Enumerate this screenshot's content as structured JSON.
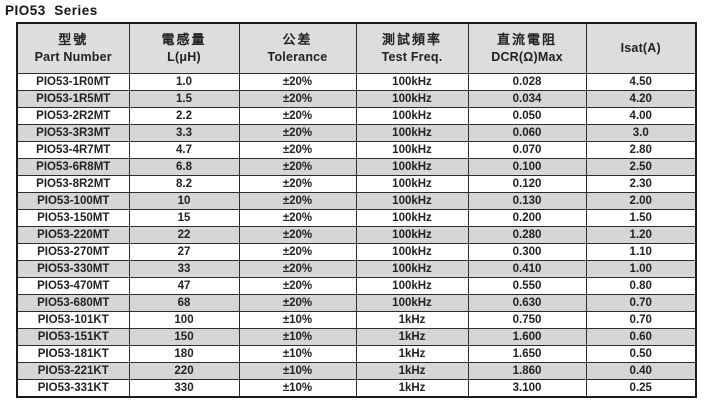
{
  "title": "PIO53  Series",
  "table": {
    "columns": [
      {
        "cn": "型號",
        "en": "Part Number"
      },
      {
        "cn": "電感量",
        "en": "L(μH)"
      },
      {
        "cn": "公差",
        "en": "Tolerance"
      },
      {
        "cn": "測試頻率",
        "en": "Test Freq."
      },
      {
        "cn": "直流電阻",
        "en": "DCR(Ω)Max"
      },
      {
        "cn": "",
        "en": "Isat(A)"
      }
    ],
    "rows": [
      {
        "part_number": "PIO53-1R0MT",
        "inductance": "1.0",
        "tolerance": "±20%",
        "test_freq": "100kHz",
        "dcr_max": "0.028",
        "isat": "4.50"
      },
      {
        "part_number": "PIO53-1R5MT",
        "inductance": "1.5",
        "tolerance": "±20%",
        "test_freq": "100kHz",
        "dcr_max": "0.034",
        "isat": "4.20"
      },
      {
        "part_number": "PIO53-2R2MT",
        "inductance": "2.2",
        "tolerance": "±20%",
        "test_freq": "100kHz",
        "dcr_max": "0.050",
        "isat": "4.00"
      },
      {
        "part_number": "PIO53-3R3MT",
        "inductance": "3.3",
        "tolerance": "±20%",
        "test_freq": "100kHz",
        "dcr_max": "0.060",
        "isat": "3.0"
      },
      {
        "part_number": "PIO53-4R7MT",
        "inductance": "4.7",
        "tolerance": "±20%",
        "test_freq": "100kHz",
        "dcr_max": "0.070",
        "isat": "2.80"
      },
      {
        "part_number": "PIO53-6R8MT",
        "inductance": "6.8",
        "tolerance": "±20%",
        "test_freq": "100kHz",
        "dcr_max": "0.100",
        "isat": "2.50"
      },
      {
        "part_number": "PIO53-8R2MT",
        "inductance": "8.2",
        "tolerance": "±20%",
        "test_freq": "100kHz",
        "dcr_max": "0.120",
        "isat": "2.30"
      },
      {
        "part_number": "PIO53-100MT",
        "inductance": "10",
        "tolerance": "±20%",
        "test_freq": "100kHz",
        "dcr_max": "0.130",
        "isat": "2.00"
      },
      {
        "part_number": "PIO53-150MT",
        "inductance": "15",
        "tolerance": "±20%",
        "test_freq": "100kHz",
        "dcr_max": "0.200",
        "isat": "1.50"
      },
      {
        "part_number": "PIO53-220MT",
        "inductance": "22",
        "tolerance": "±20%",
        "test_freq": "100kHz",
        "dcr_max": "0.280",
        "isat": "1.20"
      },
      {
        "part_number": "PIO53-270MT",
        "inductance": "27",
        "tolerance": "±20%",
        "test_freq": "100kHz",
        "dcr_max": "0.300",
        "isat": "1.10"
      },
      {
        "part_number": "PIO53-330MT",
        "inductance": "33",
        "tolerance": "±20%",
        "test_freq": "100kHz",
        "dcr_max": "0.410",
        "isat": "1.00"
      },
      {
        "part_number": "PIO53-470MT",
        "inductance": "47",
        "tolerance": "±20%",
        "test_freq": "100kHz",
        "dcr_max": "0.550",
        "isat": "0.80"
      },
      {
        "part_number": "PIO53-680MT",
        "inductance": "68",
        "tolerance": "±20%",
        "test_freq": "100kHz",
        "dcr_max": "0.630",
        "isat": "0.70"
      },
      {
        "part_number": "PIO53-101KT",
        "inductance": "100",
        "tolerance": "±10%",
        "test_freq": "1kHz",
        "dcr_max": "0.750",
        "isat": "0.70"
      },
      {
        "part_number": "PIO53-151KT",
        "inductance": "150",
        "tolerance": "±10%",
        "test_freq": "1kHz",
        "dcr_max": "1.600",
        "isat": "0.60"
      },
      {
        "part_number": "PIO53-181KT",
        "inductance": "180",
        "tolerance": "±10%",
        "test_freq": "1kHz",
        "dcr_max": "1.650",
        "isat": "0.50"
      },
      {
        "part_number": "PIO53-221KT",
        "inductance": "220",
        "tolerance": "±10%",
        "test_freq": "1kHz",
        "dcr_max": "1.860",
        "isat": "0.40"
      },
      {
        "part_number": "PIO53-331KT",
        "inductance": "330",
        "tolerance": "±10%",
        "test_freq": "1kHz",
        "dcr_max": "3.100",
        "isat": "0.25"
      }
    ]
  },
  "colors": {
    "stripe": "#d6d6d6",
    "header_bg": "#dddddd",
    "border": "#1a1a1a",
    "text": "#222222"
  }
}
